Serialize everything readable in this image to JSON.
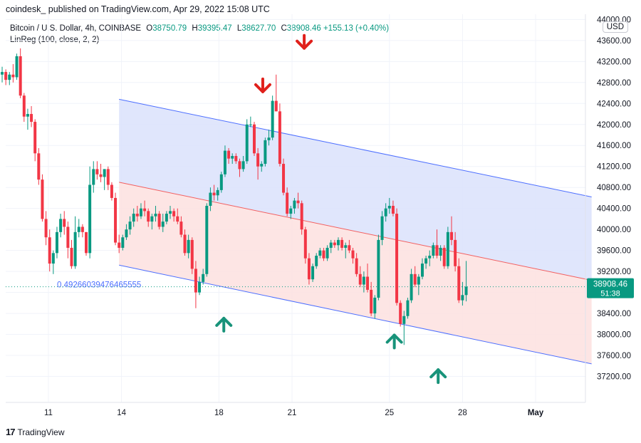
{
  "header": {
    "text": "coindesk_ published on TradingView.com, Apr 29, 2022 15:08 UTC"
  },
  "legend": {
    "symbol": "Bitcoin / U.S. Dollar, 4h, COINBASE",
    "open_label": "O",
    "open": "38750.79",
    "high_label": "H",
    "high": "39395.47",
    "low_label": "L",
    "low": "38627.70",
    "close_label": "C",
    "close": "38908.46",
    "change": "+155.13 (+0.40%)",
    "indicator": "LinReg (100, close, 2, 2)"
  },
  "currency_button": "USD",
  "footer": {
    "logo": "17",
    "brand": "TradingView"
  },
  "colors": {
    "up": "#089981",
    "down": "#f23645",
    "channel_line": "#4d6fff",
    "upper_fill": "#dbe2fb",
    "lower_fill": "#fde0df",
    "mid_line": "#f26061",
    "arrow_down": "#e0201b",
    "arrow_up": "#18937a",
    "price_tag": "#089981"
  },
  "chart_data": {
    "type": "candlestick",
    "symbol": "Bitcoin / U.S. Dollar, 4h, COINBASE",
    "y_ticks": [
      "37200.00",
      "37600.00",
      "38000.00",
      "38400.00",
      "38800.00",
      "39200.00",
      "39600.00",
      "40000.00",
      "40400.00",
      "40800.00",
      "41200.00",
      "41600.00",
      "42000.00",
      "42400.00",
      "42800.00",
      "43200.00",
      "43600.00",
      "44000.00"
    ],
    "ylim": [
      36800,
      44100
    ],
    "x_ticks": [
      "11",
      "14",
      "18",
      "21",
      "25",
      "28",
      "May"
    ],
    "last_price": "38908.46",
    "countdown": "51:38",
    "channel_label": "0.49266039476465555",
    "linreg_channel": {
      "start_day": 13.9,
      "end_day": 33.3,
      "upper": [
        42480,
        40620
      ],
      "mid": [
        40900,
        39030
      ],
      "lower": [
        39320,
        37440
      ]
    },
    "down_arrows": [
      {
        "day": 19.8,
        "price": 42650
      },
      {
        "day": 21.5,
        "price": 43480
      }
    ],
    "up_arrows": [
      {
        "day": 18.2,
        "price": 38280
      },
      {
        "day": 25.2,
        "price": 37960
      },
      {
        "day": 27.0,
        "price": 37300
      }
    ],
    "candles": [
      [
        8.05,
        42400,
        42700,
        42300,
        42500
      ],
      [
        8.2,
        42500,
        42650,
        42250,
        42400
      ],
      [
        8.35,
        42400,
        42480,
        42200,
        42250
      ],
      [
        8.5,
        42250,
        42650,
        42200,
        42600
      ],
      [
        8.65,
        42600,
        42850,
        42500,
        42750
      ],
      [
        8.8,
        42750,
        42950,
        42600,
        42850
      ],
      [
        8.95,
        42850,
        43000,
        42700,
        42950
      ],
      [
        9.1,
        42950,
        43100,
        42800,
        43000
      ],
      [
        9.25,
        43000,
        43050,
        42750,
        42850
      ],
      [
        9.4,
        42850,
        43000,
        42750,
        42950
      ],
      [
        9.55,
        42950,
        43150,
        42800,
        42900
      ],
      [
        9.7,
        42900,
        43350,
        42850,
        43300
      ],
      [
        9.85,
        43300,
        43450,
        42500,
        42550
      ],
      [
        10.0,
        42550,
        42600,
        42050,
        42150
      ],
      [
        10.15,
        42150,
        42300,
        41900,
        42200
      ],
      [
        10.3,
        42200,
        42350,
        41950,
        42050
      ],
      [
        10.45,
        42050,
        42100,
        41300,
        41450
      ],
      [
        10.6,
        41450,
        41550,
        40850,
        40950
      ],
      [
        10.75,
        40950,
        41050,
        40150,
        40200
      ],
      [
        10.9,
        40200,
        40350,
        39700,
        39850
      ],
      [
        11.05,
        39850,
        40000,
        39200,
        39350
      ],
      [
        11.2,
        39350,
        39600,
        39150,
        39550
      ],
      [
        11.35,
        39550,
        40050,
        39450,
        39950
      ],
      [
        11.5,
        39950,
        40300,
        39850,
        40200
      ],
      [
        11.65,
        40200,
        40350,
        39900,
        40050
      ],
      [
        11.8,
        40050,
        40150,
        39450,
        39650
      ],
      [
        11.95,
        39650,
        39800,
        39250,
        39300
      ],
      [
        12.1,
        39300,
        40250,
        39250,
        39950
      ],
      [
        12.25,
        39950,
        40200,
        39850,
        40050
      ],
      [
        12.4,
        40050,
        40100,
        39850,
        39950
      ],
      [
        12.55,
        39950,
        39950,
        39500,
        39550
      ],
      [
        12.7,
        39550,
        41200,
        39450,
        40850
      ],
      [
        12.85,
        40850,
        41300,
        40700,
        41150
      ],
      [
        13.0,
        41150,
        41300,
        40950,
        41050
      ],
      [
        13.15,
        41050,
        41250,
        40900,
        41000
      ],
      [
        13.3,
        41000,
        41150,
        40750,
        41150
      ],
      [
        13.45,
        41150,
        41200,
        40750,
        40850
      ],
      [
        13.6,
        40850,
        40900,
        40550,
        40600
      ],
      [
        13.75,
        40600,
        40700,
        39700,
        39750
      ],
      [
        13.9,
        39750,
        39900,
        39550,
        39650
      ],
      [
        14.05,
        39650,
        39900,
        39600,
        39850
      ],
      [
        14.2,
        39850,
        40100,
        39800,
        40000
      ],
      [
        14.35,
        40000,
        40250,
        39900,
        40150
      ],
      [
        14.5,
        40150,
        40400,
        40050,
        40300
      ],
      [
        14.65,
        40300,
        40450,
        40150,
        40250
      ],
      [
        14.8,
        40250,
        40500,
        40200,
        40400
      ],
      [
        14.95,
        40400,
        40550,
        40250,
        40350
      ],
      [
        15.1,
        40350,
        40400,
        40050,
        40150
      ],
      [
        15.25,
        40150,
        40300,
        40000,
        40250
      ],
      [
        15.4,
        40250,
        40450,
        40150,
        40300
      ],
      [
        15.55,
        40300,
        40350,
        40000,
        40050
      ],
      [
        15.7,
        40050,
        40300,
        39950,
        40150
      ],
      [
        15.85,
        40150,
        40350,
        40100,
        40300
      ],
      [
        16.0,
        40300,
        40450,
        40200,
        40350
      ],
      [
        16.15,
        40350,
        40400,
        40150,
        40250
      ],
      [
        16.3,
        40250,
        40400,
        40100,
        40150
      ],
      [
        16.45,
        40150,
        40250,
        39850,
        39900
      ],
      [
        16.6,
        39900,
        40000,
        39500,
        39550
      ],
      [
        16.75,
        39550,
        39900,
        39450,
        39800
      ],
      [
        16.9,
        39800,
        39850,
        39150,
        39250
      ],
      [
        17.05,
        39250,
        39400,
        38500,
        38800
      ],
      [
        17.2,
        38800,
        39100,
        38750,
        39000
      ],
      [
        17.35,
        39000,
        39250,
        38950,
        39150
      ],
      [
        17.5,
        39150,
        40500,
        39100,
        40450
      ],
      [
        17.65,
        40450,
        40800,
        40350,
        40700
      ],
      [
        17.8,
        40700,
        40850,
        40550,
        40650
      ],
      [
        17.95,
        40650,
        40800,
        40550,
        40750
      ],
      [
        18.1,
        40750,
        41100,
        40700,
        41050
      ],
      [
        18.25,
        41050,
        41600,
        41000,
        41500
      ],
      [
        18.4,
        41500,
        41550,
        41250,
        41350
      ],
      [
        18.55,
        41350,
        41450,
        41250,
        41400
      ],
      [
        18.7,
        41400,
        41450,
        41250,
        41300
      ],
      [
        18.85,
        41300,
        41350,
        41000,
        41150
      ],
      [
        19.0,
        41150,
        41400,
        41100,
        41300
      ],
      [
        19.15,
        41300,
        42100,
        41250,
        42000
      ],
      [
        19.3,
        42000,
        42150,
        41950,
        42000
      ],
      [
        19.45,
        42000,
        42050,
        41400,
        41450
      ],
      [
        19.6,
        41450,
        41550,
        40950,
        41200
      ],
      [
        19.75,
        41200,
        41300,
        41100,
        41250
      ],
      [
        19.9,
        41250,
        41750,
        41200,
        41700
      ],
      [
        20.05,
        41700,
        41900,
        41600,
        41750
      ],
      [
        20.2,
        41750,
        42550,
        41700,
        42450
      ],
      [
        20.35,
        42450,
        42950,
        42250,
        42250
      ],
      [
        20.5,
        42250,
        42400,
        41200,
        41250
      ],
      [
        20.65,
        41250,
        41350,
        40650,
        40700
      ],
      [
        20.8,
        40700,
        40800,
        40250,
        40300
      ],
      [
        20.95,
        40300,
        40450,
        40200,
        40400
      ],
      [
        21.1,
        40400,
        40600,
        40300,
        40550
      ],
      [
        21.25,
        40550,
        40700,
        40400,
        40500
      ],
      [
        21.4,
        40500,
        40550,
        39900,
        40000
      ],
      [
        21.55,
        40000,
        40050,
        39350,
        39450
      ],
      [
        21.7,
        39450,
        39550,
        38950,
        39050
      ],
      [
        21.85,
        39050,
        39350,
        39000,
        39300
      ],
      [
        22.0,
        39300,
        39550,
        39250,
        39500
      ],
      [
        22.15,
        39500,
        39650,
        39450,
        39600
      ],
      [
        22.3,
        39600,
        39650,
        39400,
        39450
      ],
      [
        22.45,
        39450,
        39700,
        39400,
        39650
      ],
      [
        22.6,
        39650,
        39800,
        39550,
        39750
      ],
      [
        22.75,
        39750,
        39800,
        39650,
        39700
      ],
      [
        22.9,
        39700,
        39850,
        39600,
        39800
      ],
      [
        23.05,
        39800,
        39850,
        39600,
        39650
      ],
      [
        23.2,
        39650,
        39750,
        39450,
        39700
      ],
      [
        23.35,
        39700,
        39800,
        39550,
        39600
      ],
      [
        23.5,
        39600,
        39650,
        39350,
        39450
      ],
      [
        23.65,
        39450,
        39550,
        39100,
        39150
      ],
      [
        23.8,
        39150,
        39300,
        38900,
        38950
      ],
      [
        23.95,
        38950,
        39200,
        38800,
        39100
      ],
      [
        24.1,
        39100,
        39350,
        38800,
        38850
      ],
      [
        24.25,
        38850,
        39000,
        38350,
        38400
      ],
      [
        24.4,
        38400,
        38750,
        38300,
        38700
      ],
      [
        24.55,
        38700,
        39900,
        38650,
        39800
      ],
      [
        24.7,
        39800,
        40350,
        39700,
        40250
      ],
      [
        24.85,
        40250,
        40500,
        40150,
        40400
      ],
      [
        25.0,
        40400,
        40600,
        40300,
        40450
      ],
      [
        25.15,
        40450,
        40550,
        40250,
        40300
      ],
      [
        25.3,
        40300,
        40400,
        38550,
        38600
      ],
      [
        25.45,
        38600,
        38650,
        38150,
        38200
      ],
      [
        25.6,
        38200,
        38450,
        37800,
        38350
      ],
      [
        25.75,
        38350,
        38700,
        38300,
        38650
      ],
      [
        25.9,
        38650,
        39250,
        38600,
        39150
      ],
      [
        26.05,
        39150,
        39300,
        38900,
        38950
      ],
      [
        26.2,
        38950,
        39150,
        38750,
        39100
      ],
      [
        26.35,
        39100,
        39450,
        39050,
        39350
      ],
      [
        26.5,
        39350,
        39500,
        39250,
        39450
      ],
      [
        26.65,
        39450,
        39600,
        39300,
        39500
      ],
      [
        26.8,
        39500,
        39750,
        39450,
        39700
      ],
      [
        26.95,
        39700,
        40000,
        39450,
        39500
      ],
      [
        27.1,
        39500,
        39700,
        39400,
        39650
      ],
      [
        27.25,
        39650,
        39700,
        39250,
        39300
      ],
      [
        27.4,
        39300,
        40050,
        39250,
        39950
      ],
      [
        27.55,
        39950,
        40250,
        39700,
        39800
      ],
      [
        27.7,
        39800,
        39950,
        39200,
        39300
      ],
      [
        27.85,
        39300,
        39450,
        38600,
        38650
      ],
      [
        28.0,
        38650,
        39000,
        38550,
        38750
      ],
      [
        28.15,
        38750,
        39400,
        38630,
        38910
      ]
    ]
  }
}
